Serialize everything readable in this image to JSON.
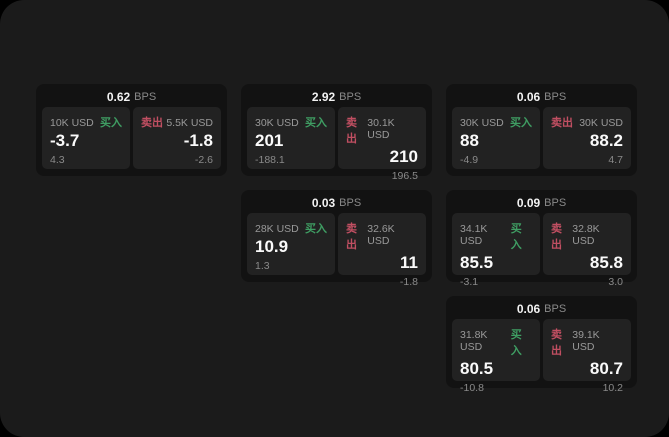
{
  "page": {
    "outer_background": "#000000",
    "surface_background": "#1b1b1b"
  },
  "colors": {
    "card_background": "#121212",
    "panel_background": "#222222",
    "value_text": "#fafafa",
    "label_gray": "#999999",
    "buy_green": "#3f9e63",
    "sell_red": "#c14f62"
  },
  "labels": {
    "bps": "BPS",
    "buy": "买入",
    "sell": "卖出"
  },
  "cards": [
    {
      "row": 1,
      "col": 1,
      "bps_value": "0.62",
      "buy": {
        "amount": "10K USD",
        "price": "-3.7",
        "change": "4.3"
      },
      "sell": {
        "amount": "5.5K USD",
        "price": "-1.8",
        "change": "-2.6"
      }
    },
    {
      "row": 1,
      "col": 2,
      "bps_value": "2.92",
      "buy": {
        "amount": "30K USD",
        "price": "201",
        "change": "-188.1"
      },
      "sell": {
        "amount": "30.1K USD",
        "price": "210",
        "change": "196.5"
      }
    },
    {
      "row": 1,
      "col": 3,
      "bps_value": "0.06",
      "buy": {
        "amount": "30K USD",
        "price": "88",
        "change": "-4.9"
      },
      "sell": {
        "amount": "30K USD",
        "price": "88.2",
        "change": "4.7"
      }
    },
    {
      "row": 2,
      "col": 2,
      "bps_value": "0.03",
      "buy": {
        "amount": "28K USD",
        "price": "10.9",
        "change": "1.3"
      },
      "sell": {
        "amount": "32.6K USD",
        "price": "11",
        "change": "-1.8"
      }
    },
    {
      "row": 2,
      "col": 3,
      "bps_value": "0.09",
      "buy": {
        "amount": "34.1K USD",
        "price": "85.5",
        "change": "-3.1"
      },
      "sell": {
        "amount": "32.8K USD",
        "price": "85.8",
        "change": "3.0"
      }
    },
    {
      "row": 3,
      "col": 3,
      "bps_value": "0.06",
      "buy": {
        "amount": "31.8K USD",
        "price": "80.5",
        "change": "-10.8"
      },
      "sell": {
        "amount": "39.1K USD",
        "price": "80.7",
        "change": "10.2"
      }
    }
  ]
}
